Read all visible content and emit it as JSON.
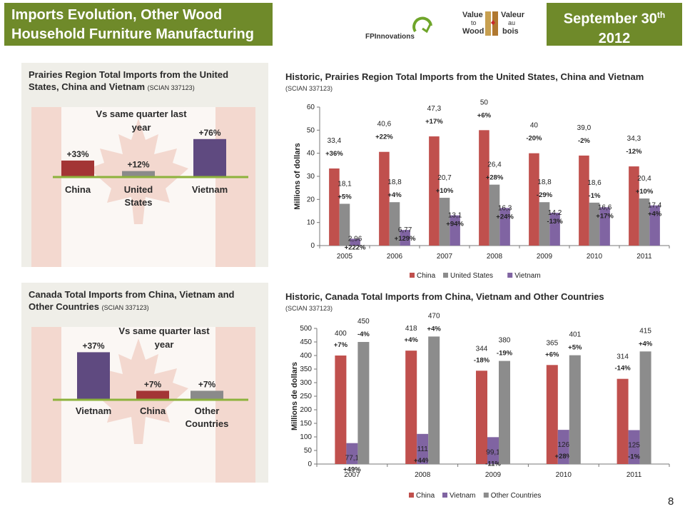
{
  "header": {
    "title_line1": "Imports Evolution, Other Wood",
    "title_line2": "Household Furniture Manufacturing",
    "date_prefix": "September 30",
    "date_sup": "th",
    "date_year": "2012"
  },
  "logos": {
    "fp_text": "FPInnovations",
    "vw_left_line1": "Value",
    "vw_left_line2": "to",
    "vw_left_line3": "Wood",
    "vw_right_line1": "Valeur",
    "vw_right_line2": "au",
    "vw_right_line3": "bois"
  },
  "panel1": {
    "title_line1": "Prairies Region Total Imports from the United",
    "title_line2": "States, China and Vietnam",
    "code": "(SCIAN  337123)",
    "caption_line1": "Vs same quarter last",
    "caption_line2": "year"
  },
  "panel2": {
    "title_line1": "Canada Total Imports from China, Vietnam and",
    "title_line2": "Other Countries",
    "code": "(SCIAN  337123)",
    "caption_line1": "Vs same quarter last",
    "caption_line2": "year"
  },
  "chart1": {
    "title": "Historic, Prairies Region Total Imports from the United States, China and Vietnam",
    "code": "(SCIAN 337123)"
  },
  "chart2": {
    "title": "Historic, Canada Total Imports from China, Vietnam and Other Countries",
    "code": "(SCIAN 337123)"
  },
  "page_number": "8",
  "chart_data": [
    {
      "type": "bar",
      "subject": "prairies-vs-quarter",
      "categories": [
        "China",
        "United States",
        "Vietnam"
      ],
      "category_labels": [
        [
          "China"
        ],
        [
          "United",
          "States"
        ],
        [
          "Vietnam"
        ]
      ],
      "values": [
        33,
        12,
        76
      ],
      "labels": [
        "+33%",
        "+12%",
        "+76%"
      ],
      "colors": [
        "#a33535",
        "#8a8a8a",
        "#5f4a80"
      ]
    },
    {
      "type": "bar",
      "subject": "canada-vs-quarter",
      "categories": [
        "Vietnam",
        "China",
        "Other Countries"
      ],
      "category_labels": [
        [
          "Vietnam"
        ],
        [
          "China"
        ],
        [
          "Other",
          "Countries"
        ]
      ],
      "values": [
        37,
        7,
        7
      ],
      "labels": [
        "+37%",
        "+7%",
        "+7%"
      ],
      "colors": [
        "#5f4a80",
        "#a33535",
        "#8a8a8a"
      ]
    },
    {
      "type": "bar",
      "subject": "prairies-historic",
      "categories": [
        "2005",
        "2006",
        "2007",
        "2008",
        "2009",
        "2010",
        "2011"
      ],
      "ylabel": "Millions of dollars",
      "ylim": [
        0,
        60
      ],
      "yticks": [
        0,
        10,
        20,
        30,
        40,
        50,
        60
      ],
      "grid": false,
      "legend": "bottom",
      "series": [
        {
          "name": "China",
          "color": "#c0504d",
          "values": [
            33.4,
            40.6,
            47.3,
            50,
            40,
            39.0,
            34.3
          ],
          "labels": [
            "33,4",
            "40,6",
            "47,3",
            "50",
            "40",
            "39,0",
            "34,3"
          ],
          "changes": [
            "+36%",
            "+22%",
            "+17%",
            "+6%",
            "-20%",
            "-2%",
            "-12%"
          ]
        },
        {
          "name": "United States",
          "color": "#8c8c8c",
          "values": [
            18.1,
            18.8,
            20.7,
            26.4,
            18.8,
            18.6,
            20.4
          ],
          "labels": [
            "18,1",
            "18,8",
            "20,7",
            "26,4",
            "18,8",
            "18,6",
            "20,4"
          ],
          "changes": [
            "+5%",
            "+4%",
            "+10%",
            "+28%",
            "-29%",
            "-1%",
            "+10%"
          ]
        },
        {
          "name": "Vietnam",
          "color": "#8064a2",
          "values": [
            2.96,
            6.77,
            13.1,
            16.3,
            14.2,
            16.6,
            17.4
          ],
          "labels": [
            "2,96",
            "6,77",
            "13,1",
            "16,3",
            "14,2",
            "16,6",
            "17,4"
          ],
          "changes": [
            "+222%",
            "+129%",
            "+94%",
            "+24%",
            "-13%",
            "+17%",
            "+4%"
          ]
        }
      ]
    },
    {
      "type": "bar",
      "subject": "canada-historic",
      "categories": [
        "2007",
        "2008",
        "2009",
        "2010",
        "2011"
      ],
      "ylabel": "Millions de dollars",
      "ylim": [
        0,
        500
      ],
      "yticks": [
        0,
        50,
        100,
        150,
        200,
        250,
        300,
        350,
        400,
        450,
        500
      ],
      "grid": false,
      "legend": "bottom",
      "series": [
        {
          "name": "China",
          "color": "#c0504d",
          "values": [
            400,
            418,
            344,
            365,
            314
          ],
          "labels": [
            "400",
            "418",
            "344",
            "365",
            "314"
          ],
          "changes": [
            "+7%",
            "+4%",
            "-18%",
            "+6%",
            "-14%"
          ]
        },
        {
          "name": "Vietnam",
          "color": "#8064a2",
          "values": [
            77.1,
            111,
            99.1,
            126,
            125
          ],
          "labels": [
            "77,1",
            "111",
            "99,1",
            "126",
            "125"
          ],
          "changes": [
            "+49%",
            "+44%",
            "-11%",
            "+28%",
            "-1%"
          ]
        },
        {
          "name": "Other Countries",
          "color": "#8c8c8c",
          "values": [
            450,
            470,
            380,
            401,
            415
          ],
          "labels": [
            "450",
            "470",
            "380",
            "401",
            "415"
          ],
          "changes": [
            "-4%",
            "+4%",
            "-19%",
            "+5%",
            "+4%"
          ]
        }
      ]
    }
  ]
}
